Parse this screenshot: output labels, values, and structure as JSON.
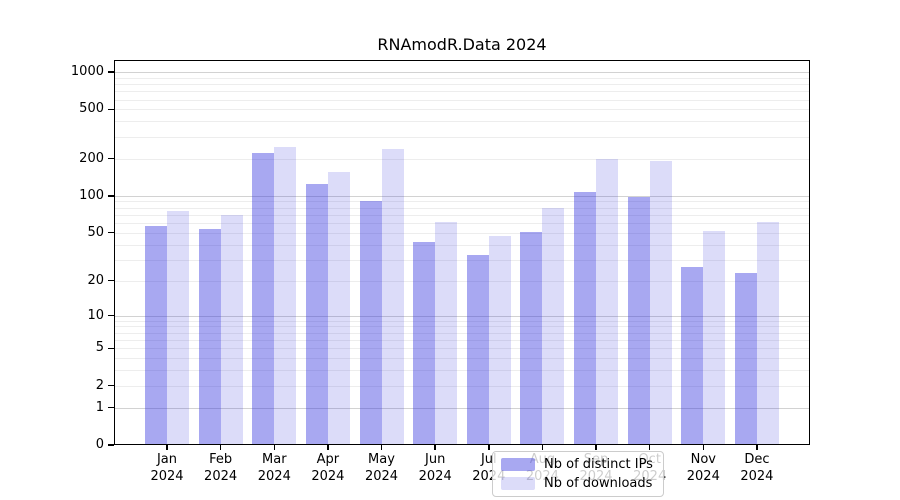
{
  "chart_data": {
    "type": "bar",
    "title": "RNAmodR.Data 2024",
    "xlabel": "",
    "ylabel": "",
    "yscale": "log1p",
    "ylim": [
      0,
      1224
    ],
    "yticks": [
      0,
      1,
      2,
      5,
      10,
      20,
      50,
      100,
      200,
      500,
      1000
    ],
    "grid_major": [
      1,
      10,
      100,
      1000
    ],
    "categories": [
      "Jan",
      "Feb",
      "Mar",
      "Apr",
      "May",
      "Jun",
      "Jul",
      "Aug",
      "Sep",
      "Oct",
      "Nov",
      "Dec"
    ],
    "year_label": "2024",
    "series": [
      {
        "name": "Nb of distinct IPs",
        "color": "rgba(47,47,222,0.42)",
        "values": [
          57,
          54,
          223,
          124,
          91,
          42,
          33,
          51,
          108,
          98,
          26,
          23
        ]
      },
      {
        "name": "Nb of downloads",
        "color": "rgba(47,47,222,0.17)",
        "values": [
          75,
          70,
          250,
          157,
          240,
          61,
          47,
          80,
          200,
          192,
          52,
          61
        ]
      }
    ],
    "legend_position": "bottom-center",
    "colors": {
      "axis": "#000000",
      "grid_major": "#d2d2d2",
      "grid_minor": "#ededed",
      "background": "#ffffff"
    }
  }
}
